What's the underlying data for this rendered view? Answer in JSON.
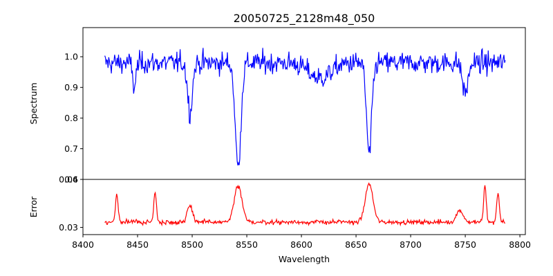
{
  "chart_data": [
    {
      "type": "line",
      "title": "20050725_2128m48_050",
      "xlabel": "",
      "ylabel": "Spectrum",
      "xlim": [
        8400,
        8805
      ],
      "ylim": [
        0.6,
        1.095
      ],
      "xticks": [],
      "yticks": [
        0.6,
        0.7,
        0.8,
        0.9,
        1.0
      ],
      "ytick_labels": [
        "0.6",
        "0.7",
        "0.8",
        "0.9",
        "1.0"
      ],
      "grid": false,
      "series": [
        {
          "name": "",
          "color": "#0000ff",
          "x_range": [
            8420,
            8787
          ],
          "baseline": 0.98,
          "noise": 0.03,
          "features": [
            {
              "center": 8447,
              "depth": 0.08,
              "width": 1.5
            },
            {
              "center": 8498,
              "depth": 0.16,
              "width": 2.2
            },
            {
              "center": 8542,
              "depth": 0.34,
              "width": 2.6
            },
            {
              "center": 8662,
              "depth": 0.3,
              "width": 2.4
            },
            {
              "center": 8617,
              "depth": 0.05,
              "width": 10
            },
            {
              "center": 8750,
              "depth": 0.1,
              "width": 2.5
            }
          ]
        }
      ]
    },
    {
      "type": "line",
      "title": "",
      "xlabel": "Wavelength",
      "ylabel": "Error",
      "xlim": [
        8400,
        8805
      ],
      "ylim": [
        0.0285,
        0.04
      ],
      "xticks": [
        8400,
        8450,
        8500,
        8550,
        8600,
        8650,
        8700,
        8750,
        8800
      ],
      "xtick_labels": [
        "8400",
        "8450",
        "8500",
        "8550",
        "8600",
        "8650",
        "8700",
        "8750",
        "8800"
      ],
      "yticks": [
        0.03,
        0.04
      ],
      "ytick_labels": [
        "0.03",
        "0.04"
      ],
      "grid": false,
      "series": [
        {
          "name": "",
          "color": "#ff0000",
          "x_range": [
            8420,
            8787
          ],
          "baseline": 0.0311,
          "noise": 0.0004,
          "features": [
            {
              "center": 8431,
              "height": 0.0058,
              "width": 1.2
            },
            {
              "center": 8466,
              "height": 0.0062,
              "width": 1.2
            },
            {
              "center": 8498,
              "height": 0.0035,
              "width": 2.5
            },
            {
              "center": 8542,
              "height": 0.0075,
              "width": 3.5
            },
            {
              "center": 8662,
              "height": 0.008,
              "width": 3.5
            },
            {
              "center": 8768,
              "height": 0.0075,
              "width": 1.2
            },
            {
              "center": 8780,
              "height": 0.006,
              "width": 1.2
            },
            {
              "center": 8745,
              "height": 0.0025,
              "width": 3
            }
          ]
        }
      ]
    }
  ]
}
